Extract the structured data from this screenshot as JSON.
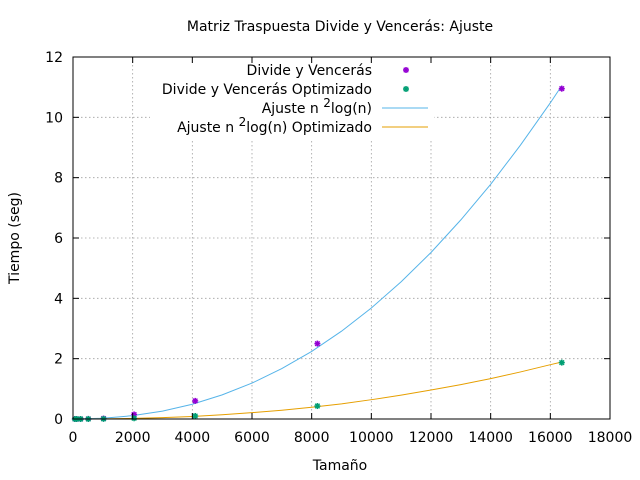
{
  "chart_data": {
    "type": "scatter",
    "title": "Matriz Traspuesta Divide y Vencerás: Ajuste",
    "xlabel": "Tamaño",
    "ylabel": "Tiempo (seg)",
    "xlim": [
      0,
      18000
    ],
    "ylim": [
      0,
      12
    ],
    "xticks": [
      0,
      2000,
      4000,
      6000,
      8000,
      10000,
      12000,
      14000,
      16000,
      18000
    ],
    "yticks": [
      0,
      2,
      4,
      6,
      8,
      10,
      12
    ],
    "grid": true,
    "legend_position": "top-right",
    "series": [
      {
        "name": "Divide y Vencerás",
        "kind": "points",
        "color": "#9400d3",
        "x": [
          64,
          128,
          256,
          512,
          1024,
          2048,
          4096,
          8192,
          16384
        ],
        "y": [
          0.0,
          0.0,
          0.0,
          0.003,
          0.015,
          0.15,
          0.6,
          2.5,
          10.95
        ]
      },
      {
        "name": "Divide y Vencerás Optimizado",
        "kind": "points",
        "color": "#009e73",
        "x": [
          64,
          128,
          256,
          512,
          1024,
          2048,
          4096,
          8192,
          16384
        ],
        "y": [
          0.0,
          0.0,
          0.0,
          0.001,
          0.004,
          0.025,
          0.1,
          0.43,
          1.87
        ]
      },
      {
        "name_prefix": "Ajuste n ",
        "name_sup": "2",
        "name_suffix": "log(n)",
        "kind": "line",
        "color": "#56b4e9",
        "x": [
          0,
          1000,
          2000,
          3000,
          4000,
          5000,
          6000,
          7000,
          8000,
          9000,
          10000,
          11000,
          12000,
          13000,
          14000,
          15000,
          16000,
          16384
        ],
        "y": [
          0.0,
          0.025,
          0.11,
          0.26,
          0.49,
          0.8,
          1.19,
          1.67,
          2.24,
          2.91,
          3.68,
          4.55,
          5.52,
          6.6,
          7.78,
          9.08,
          10.48,
          11.05
        ]
      },
      {
        "name_prefix": "Ajuste n ",
        "name_sup": "2",
        "name_suffix": "log(n) Optimizado",
        "kind": "line",
        "color": "#e69f00",
        "x": [
          0,
          1000,
          2000,
          3000,
          4000,
          5000,
          6000,
          7000,
          8000,
          9000,
          10000,
          11000,
          12000,
          13000,
          14000,
          15000,
          16000,
          16384
        ],
        "y": [
          0.0,
          0.0045,
          0.02,
          0.045,
          0.085,
          0.14,
          0.21,
          0.29,
          0.39,
          0.5,
          0.64,
          0.79,
          0.96,
          1.14,
          1.34,
          1.56,
          1.8,
          1.89
        ]
      }
    ]
  }
}
